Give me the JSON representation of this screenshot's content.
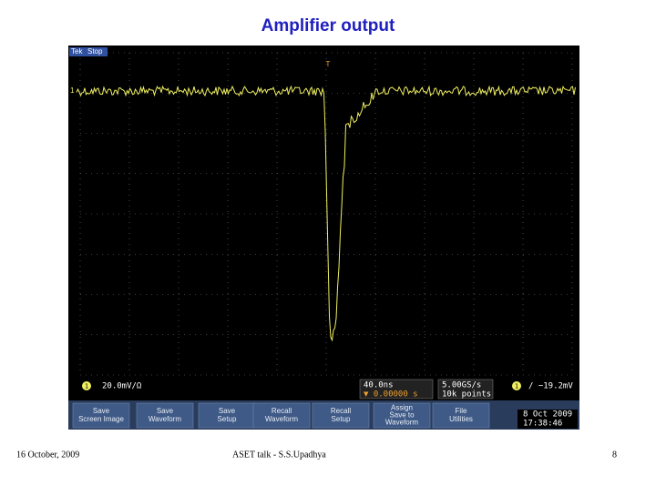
{
  "title": "Amplifier output",
  "scope": {
    "brand": "Tek",
    "run_state": "Stop",
    "channel_marker": "1",
    "trigger_marker": "T",
    "status": {
      "channel": "1",
      "scale": "20.0mV/Ω",
      "timebase": "40.0ns",
      "delay": "▼ 0.00000 s",
      "sample_rate": "5.00GS/s",
      "record_length": "10k points",
      "trigger_channel": "1",
      "trigger_level": "∕ −19.2mV"
    },
    "menu": [
      {
        "lines": [
          "Save",
          "Screen Image"
        ]
      },
      {
        "lines": [
          "Save",
          "Waveform"
        ]
      },
      {
        "lines": [
          "Save",
          "Setup"
        ]
      },
      {
        "lines": [
          "Recall",
          "Waveform"
        ]
      },
      {
        "lines": [
          "Recall",
          "Setup"
        ]
      },
      {
        "lines": [
          "Assign",
          "Save to",
          "Waveform"
        ]
      },
      {
        "lines": [
          "File",
          "Utilities"
        ]
      }
    ],
    "date": "8 Oct 2009",
    "time": "17:38:46"
  },
  "footer": {
    "date": "16 October, 2009",
    "talk": "ASET talk - S.S.Upadhya",
    "page": "8"
  }
}
